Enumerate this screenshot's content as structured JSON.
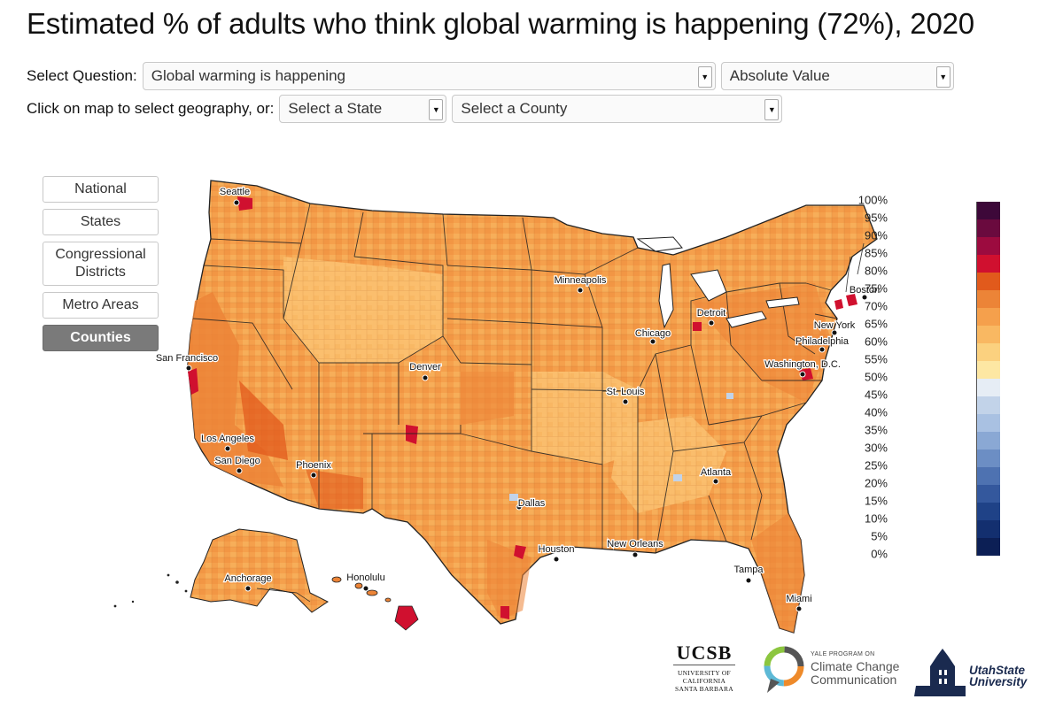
{
  "title": "Estimated % of adults who think global warming is happening (72%), 2020",
  "controls": {
    "question_label": "Select Question:",
    "question_value": "Global warming is happening",
    "measure_value": "Absolute Value",
    "geo_label": "Click on map to select geography, or:",
    "state_value": "Select a State",
    "county_value": "Select a County"
  },
  "nav": [
    {
      "label": "National",
      "active": false
    },
    {
      "label": "States",
      "active": false
    },
    {
      "label": "Congressional Districts",
      "active": false
    },
    {
      "label": "Metro Areas",
      "active": false
    },
    {
      "label": "Counties",
      "active": true
    }
  ],
  "cities": [
    "Seattle",
    "San Francisco",
    "Los Angeles",
    "San Diego",
    "Phoenix",
    "Denver",
    "Minneapolis",
    "Chicago",
    "Detroit",
    "St. Louis",
    "Dallas",
    "Houston",
    "New Orleans",
    "Atlanta",
    "Tampa",
    "Miami",
    "Washington, D.C.",
    "Philadelphia",
    "New York",
    "Boston",
    "Anchorage",
    "Honolulu"
  ],
  "legend": {
    "labels": [
      "100%",
      "95%",
      "90%",
      "85%",
      "80%",
      "75%",
      "70%",
      "65%",
      "60%",
      "55%",
      "50%",
      "45%",
      "40%",
      "35%",
      "30%",
      "25%",
      "20%",
      "15%",
      "10%",
      "5%",
      "0%"
    ],
    "colors": [
      "#3d0839",
      "#6a0a3e",
      "#9c0b3f",
      "#d0102f",
      "#e15a1c",
      "#ec8437",
      "#f5a04c",
      "#f9b862",
      "#fbd17f",
      "#fde7a3",
      "#e6edf5",
      "#c2d3e9",
      "#a9c1e2",
      "#8aa8d4",
      "#6c8ec4",
      "#4e72b1",
      "#34589d",
      "#1f4287",
      "#132f6f",
      "#0c1f55"
    ]
  },
  "logos": {
    "ucsb_big": "UCSB",
    "ucsb_small_1": "UNIVERSITY OF CALIFORNIA",
    "ucsb_small_2": "SANTA BARBARA",
    "ycc_small": "YALE PROGRAM ON",
    "ycc_1": "Climate Change",
    "ycc_2": "Communication",
    "usu_1": "UtahState",
    "usu_2": "University"
  }
}
